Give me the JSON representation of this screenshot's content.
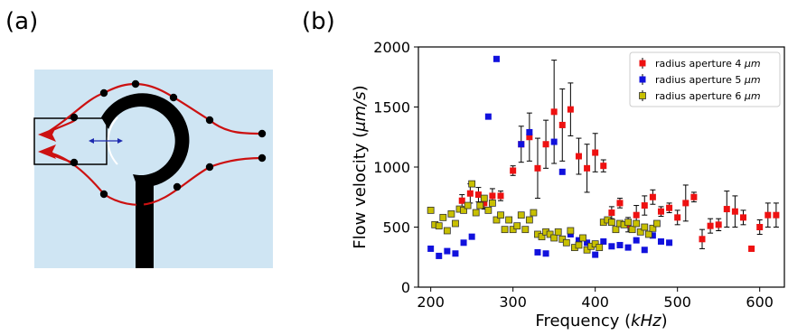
{
  "panel_a": {
    "label": "(a)",
    "colors": {
      "background": "#cfe5f3",
      "ring": "#000000",
      "flow_line": "#cc1111",
      "node": "#000000",
      "arrow_red": "#cc1111",
      "arrow_blue": "#1d2ab0"
    }
  },
  "panel_b": {
    "label": "(b)"
  },
  "chart_data": {
    "type": "scatter",
    "title": "",
    "xlabel_prefix": "Frequency (",
    "xlabel_unit": "kHz",
    "xlabel_suffix": ")",
    "ylabel_prefix": "Flow velocity (",
    "ylabel_unit": "μm/s",
    "ylabel_suffix": ")",
    "xlim": [
      185,
      630
    ],
    "ylim": [
      0,
      2000
    ],
    "xticks": [
      200,
      300,
      400,
      500,
      600
    ],
    "yticks": [
      0,
      500,
      1000,
      1500,
      2000
    ],
    "grid": false,
    "legend_position": "top-right",
    "series": [
      {
        "name": "radius aperture 4",
        "name_unit": "μm",
        "color": "#ee1111",
        "points": [
          [
            238,
            720
          ],
          [
            248,
            780
          ],
          [
            258,
            770
          ],
          [
            265,
            700
          ],
          [
            275,
            760
          ],
          [
            285,
            760
          ],
          [
            300,
            970
          ],
          [
            310,
            1190
          ],
          [
            320,
            1250
          ],
          [
            330,
            990
          ],
          [
            340,
            1190
          ],
          [
            350,
            1460
          ],
          [
            360,
            1350
          ],
          [
            370,
            1480
          ],
          [
            380,
            1090
          ],
          [
            390,
            990
          ],
          [
            400,
            1120
          ],
          [
            410,
            1010
          ],
          [
            420,
            620
          ],
          [
            430,
            700
          ],
          [
            440,
            520
          ],
          [
            450,
            600
          ],
          [
            460,
            680
          ],
          [
            470,
            750
          ],
          [
            480,
            630
          ],
          [
            490,
            660
          ],
          [
            500,
            580
          ],
          [
            510,
            700
          ],
          [
            520,
            750
          ],
          [
            530,
            400
          ],
          [
            540,
            510
          ],
          [
            550,
            520
          ],
          [
            560,
            650
          ],
          [
            570,
            630
          ],
          [
            580,
            580
          ],
          [
            590,
            320
          ],
          [
            600,
            500
          ],
          [
            610,
            600
          ],
          [
            620,
            600
          ]
        ],
        "errors": [
          50,
          80,
          60,
          50,
          60,
          40,
          40,
          150,
          200,
          250,
          200,
          430,
          300,
          220,
          150,
          200,
          160,
          50,
          50,
          40,
          60,
          80,
          80,
          60,
          40,
          40,
          60,
          150,
          40,
          80,
          60,
          50,
          150,
          130,
          60,
          20,
          60,
          100,
          100
        ]
      },
      {
        "name": "radius aperture 5",
        "name_unit": "μm",
        "color": "#1111dd",
        "points": [
          [
            200,
            320
          ],
          [
            210,
            260
          ],
          [
            220,
            300
          ],
          [
            230,
            280
          ],
          [
            240,
            370
          ],
          [
            250,
            420
          ],
          [
            270,
            1420
          ],
          [
            280,
            1900
          ],
          [
            310,
            1190
          ],
          [
            320,
            1290
          ],
          [
            330,
            290
          ],
          [
            340,
            280
          ],
          [
            350,
            1210
          ],
          [
            360,
            960
          ],
          [
            370,
            440
          ],
          [
            380,
            390
          ],
          [
            390,
            370
          ],
          [
            400,
            270
          ],
          [
            410,
            380
          ],
          [
            420,
            340
          ],
          [
            430,
            350
          ],
          [
            440,
            330
          ],
          [
            450,
            390
          ],
          [
            460,
            310
          ],
          [
            470,
            430
          ],
          [
            480,
            380
          ],
          [
            490,
            370
          ]
        ]
      },
      {
        "name": "radius aperture 6",
        "name_unit": "μm",
        "color": "#c8c000",
        "points": [
          [
            200,
            640
          ],
          [
            205,
            520
          ],
          [
            210,
            510
          ],
          [
            215,
            580
          ],
          [
            220,
            470
          ],
          [
            225,
            610
          ],
          [
            230,
            530
          ],
          [
            235,
            650
          ],
          [
            240,
            640
          ],
          [
            245,
            680
          ],
          [
            250,
            860
          ],
          [
            255,
            620
          ],
          [
            260,
            680
          ],
          [
            265,
            740
          ],
          [
            270,
            640
          ],
          [
            275,
            700
          ],
          [
            280,
            560
          ],
          [
            285,
            600
          ],
          [
            290,
            480
          ],
          [
            295,
            560
          ],
          [
            300,
            480
          ],
          [
            305,
            510
          ],
          [
            310,
            600
          ],
          [
            315,
            480
          ],
          [
            320,
            560
          ],
          [
            325,
            620
          ],
          [
            330,
            440
          ],
          [
            335,
            420
          ],
          [
            340,
            460
          ],
          [
            345,
            440
          ],
          [
            350,
            410
          ],
          [
            355,
            460
          ],
          [
            360,
            400
          ],
          [
            365,
            370
          ],
          [
            370,
            470
          ],
          [
            375,
            330
          ],
          [
            380,
            350
          ],
          [
            385,
            410
          ],
          [
            390,
            310
          ],
          [
            395,
            340
          ],
          [
            400,
            360
          ],
          [
            405,
            330
          ],
          [
            410,
            540
          ],
          [
            415,
            560
          ],
          [
            420,
            540
          ],
          [
            425,
            480
          ],
          [
            430,
            530
          ],
          [
            435,
            520
          ],
          [
            440,
            540
          ],
          [
            445,
            480
          ],
          [
            450,
            530
          ],
          [
            455,
            460
          ],
          [
            460,
            500
          ],
          [
            465,
            440
          ],
          [
            470,
            490
          ],
          [
            475,
            530
          ]
        ]
      }
    ]
  }
}
